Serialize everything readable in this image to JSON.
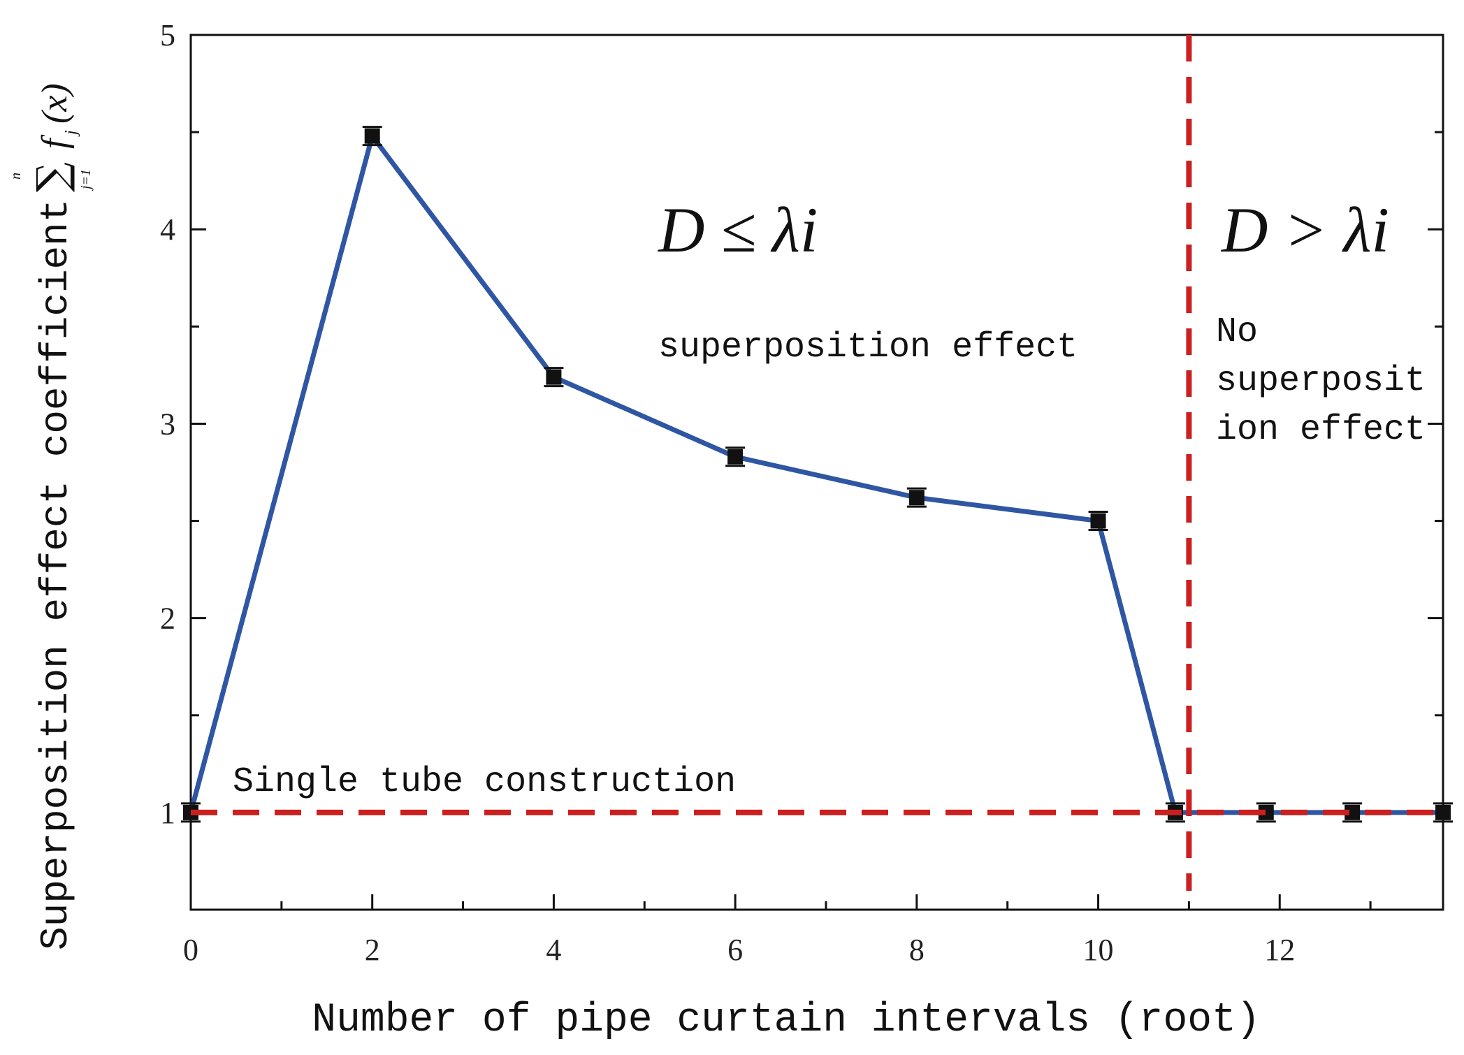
{
  "chart_data": {
    "type": "line",
    "title": "",
    "xlabel": "Number of pipe curtain intervals (root)",
    "ylabel": "Superposition effect coefficient",
    "ylabel_formula": {
      "sigma": "∑",
      "upper": "n",
      "lower": "j=1",
      "f": "f",
      "sub": "j",
      "arg": "(x)"
    },
    "xlim": [
      0,
      13.8
    ],
    "ylim": [
      0.5,
      5
    ],
    "xticks": [
      0,
      2,
      4,
      6,
      8,
      10,
      12
    ],
    "yticks": [
      1,
      2,
      3,
      4,
      5
    ],
    "series": [
      {
        "name": "Superposition effect coefficient",
        "color": "#2f56a3",
        "marker_color": "#111111",
        "x": [
          0,
          2,
          4,
          6,
          8,
          10,
          10.85,
          11.85,
          12.8,
          13.8
        ],
        "y": [
          1.0,
          4.48,
          3.24,
          2.83,
          2.62,
          2.5,
          1.0,
          1.0,
          1.0,
          1.0
        ]
      }
    ],
    "reference_lines": [
      {
        "name": "single-tube-baseline",
        "orientation": "horizontal",
        "value": 1.0,
        "color": "#cc1f1f",
        "style": "dashed"
      },
      {
        "name": "critical-interval",
        "orientation": "vertical",
        "value": 11,
        "color": "#cc1f1f",
        "style": "dashed"
      }
    ],
    "annotations": {
      "left_condition": "D ≤ λi",
      "right_condition": "D > λi",
      "left_effect": "superposition effect",
      "right_effect_lines": [
        "No",
        "superposit",
        "ion effect"
      ],
      "baseline_label": "Single tube construction"
    }
  }
}
